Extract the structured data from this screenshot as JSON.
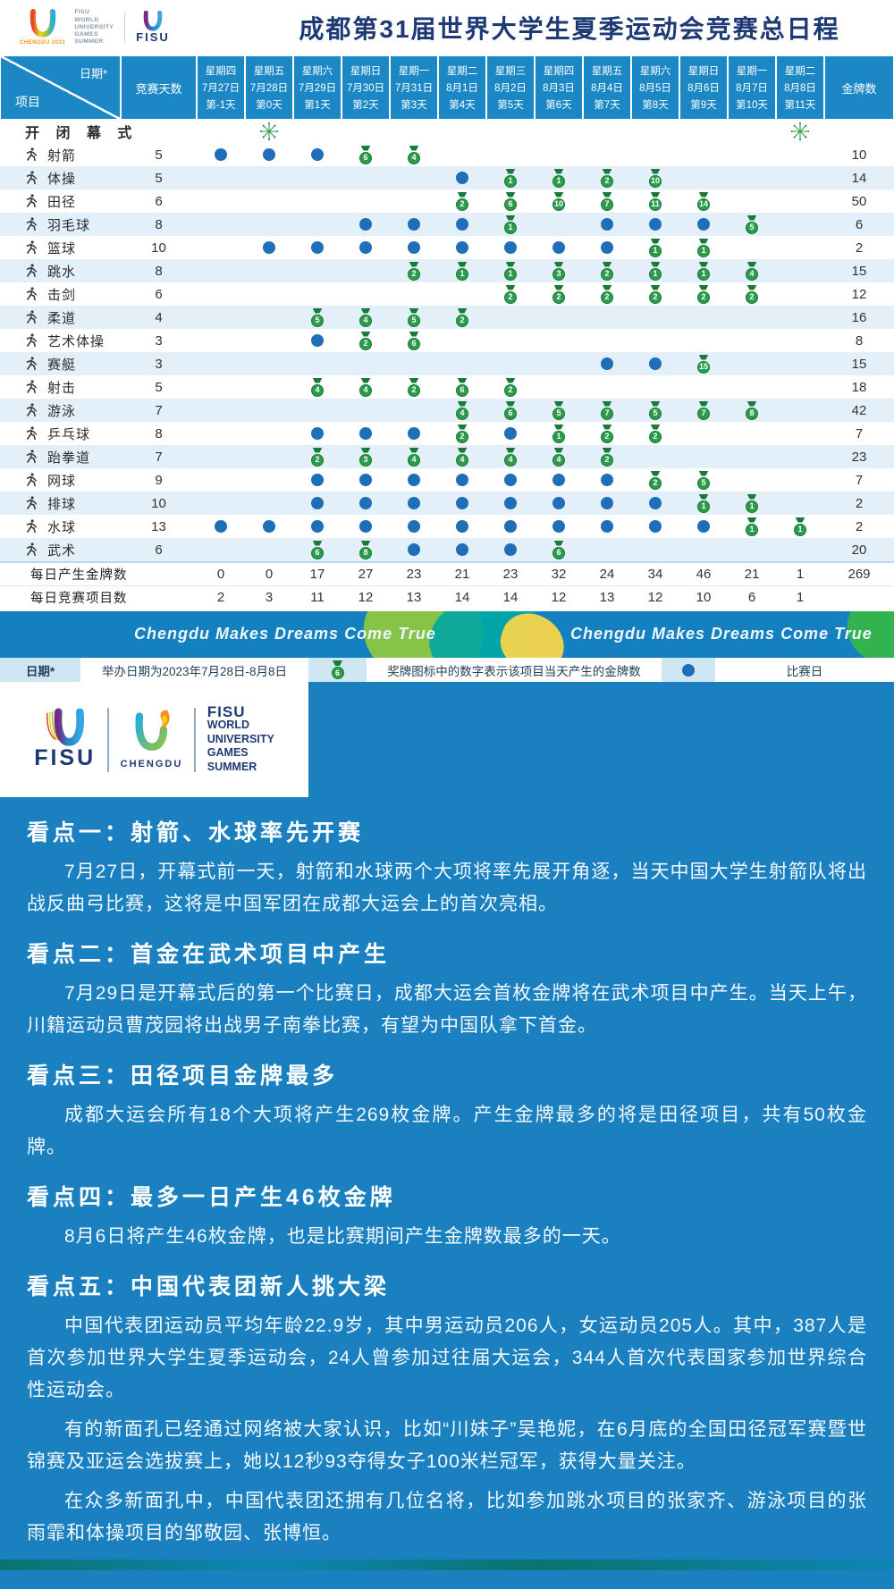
{
  "header": {
    "title": "成都第31届世界大学生夏季运动会竞赛总日程"
  },
  "logos": {
    "chengdu2021": "CHENGDU 2021",
    "fisu": "FISU",
    "chengdu": "CHENGDU",
    "block": [
      "FISU",
      "WORLD",
      "UNIVERSITY",
      "GAMES",
      "SUMMER"
    ]
  },
  "table": {
    "corner": {
      "top": "日期*",
      "bottom": "项目"
    },
    "col_days_label": "竞赛天数",
    "col_gold_label": "金牌数",
    "columns": [
      {
        "weekday": "星期四",
        "date": "7月27日",
        "daynum": "第-1天"
      },
      {
        "weekday": "星期五",
        "date": "7月28日",
        "daynum": "第0天"
      },
      {
        "weekday": "星期六",
        "date": "7月29日",
        "daynum": "第1天"
      },
      {
        "weekday": "星期日",
        "date": "7月30日",
        "daynum": "第2天"
      },
      {
        "weekday": "星期一",
        "date": "7月31日",
        "daynum": "第3天"
      },
      {
        "weekday": "星期二",
        "date": "8月1日",
        "daynum": "第4天"
      },
      {
        "weekday": "星期三",
        "date": "8月2日",
        "daynum": "第5天"
      },
      {
        "weekday": "星期四",
        "date": "8月3日",
        "daynum": "第6天"
      },
      {
        "weekday": "星期五",
        "date": "8月4日",
        "daynum": "第7天"
      },
      {
        "weekday": "星期六",
        "date": "8月5日",
        "daynum": "第8天"
      },
      {
        "weekday": "星期日",
        "date": "8月6日",
        "daynum": "第9天"
      },
      {
        "weekday": "星期一",
        "date": "8月7日",
        "daynum": "第10天"
      },
      {
        "weekday": "星期二",
        "date": "8月8日",
        "daynum": "第11天"
      }
    ],
    "ceremony": {
      "label": "开 闭 幕 式",
      "fireworks_cols": [
        1,
        12
      ]
    },
    "sports": [
      {
        "name": "射箭",
        "icon": "archery",
        "days": 5,
        "gold": 10,
        "cells": [
          "d",
          "d",
          "d",
          "m6",
          "m4",
          "",
          "",
          "",
          "",
          "",
          "",
          "",
          ""
        ]
      },
      {
        "name": "体操",
        "icon": "gymnastics",
        "days": 5,
        "gold": 14,
        "cells": [
          "",
          "",
          "",
          "",
          "",
          "d",
          "m1",
          "m1",
          "m2",
          "m10",
          "",
          "",
          ""
        ]
      },
      {
        "name": "田径",
        "icon": "athletics",
        "days": 6,
        "gold": 50,
        "cells": [
          "",
          "",
          "",
          "",
          "",
          "m2",
          "m6",
          "m10",
          "m7",
          "m11",
          "m14",
          "",
          ""
        ]
      },
      {
        "name": "羽毛球",
        "icon": "badminton",
        "days": 8,
        "gold": 6,
        "cells": [
          "",
          "",
          "",
          "d",
          "d",
          "d",
          "m1",
          "",
          "d",
          "d",
          "d",
          "m5",
          ""
        ]
      },
      {
        "name": "篮球",
        "icon": "basketball",
        "days": 10,
        "gold": 2,
        "cells": [
          "",
          "d",
          "d",
          "d",
          "d",
          "d",
          "d",
          "d",
          "d",
          "m1",
          "m1",
          "",
          ""
        ]
      },
      {
        "name": "跳水",
        "icon": "diving",
        "days": 8,
        "gold": 15,
        "cells": [
          "",
          "",
          "",
          "",
          "m2",
          "m1",
          "m1",
          "m3",
          "m2",
          "m1",
          "m1",
          "m4",
          ""
        ]
      },
      {
        "name": "击剑",
        "icon": "fencing",
        "days": 6,
        "gold": 12,
        "cells": [
          "",
          "",
          "",
          "",
          "",
          "",
          "m2",
          "m2",
          "m2",
          "m2",
          "m2",
          "m2",
          ""
        ]
      },
      {
        "name": "柔道",
        "icon": "judo",
        "days": 4,
        "gold": 16,
        "cells": [
          "",
          "",
          "m5",
          "m4",
          "m5",
          "m2",
          "",
          "",
          "",
          "",
          "",
          "",
          ""
        ]
      },
      {
        "name": "艺术体操",
        "icon": "rhythmic-gymnastics",
        "days": 3,
        "gold": 8,
        "cells": [
          "",
          "",
          "d",
          "m2",
          "m6",
          "",
          "",
          "",
          "",
          "",
          "",
          "",
          ""
        ]
      },
      {
        "name": "赛艇",
        "icon": "rowing",
        "days": 3,
        "gold": 15,
        "cells": [
          "",
          "",
          "",
          "",
          "",
          "",
          "",
          "",
          "d",
          "d",
          "m15",
          "",
          ""
        ]
      },
      {
        "name": "射击",
        "icon": "shooting",
        "days": 5,
        "gold": 18,
        "cells": [
          "",
          "",
          "m4",
          "m4",
          "m2",
          "m6",
          "m2",
          "",
          "",
          "",
          "",
          "",
          ""
        ]
      },
      {
        "name": "游泳",
        "icon": "swimming",
        "days": 7,
        "gold": 42,
        "cells": [
          "",
          "",
          "",
          "",
          "",
          "m4",
          "m6",
          "m5",
          "m7",
          "m5",
          "m7",
          "m8",
          ""
        ]
      },
      {
        "name": "乒乓球",
        "icon": "table-tennis",
        "days": 8,
        "gold": 7,
        "cells": [
          "",
          "",
          "d",
          "d",
          "d",
          "m2",
          "d",
          "m1",
          "m2",
          "m2",
          "",
          "",
          ""
        ]
      },
      {
        "name": "跆拳道",
        "icon": "taekwondo",
        "days": 7,
        "gold": 23,
        "cells": [
          "",
          "",
          "m2",
          "m3",
          "m4",
          "m4",
          "m4",
          "m4",
          "m2",
          "",
          "",
          "",
          ""
        ]
      },
      {
        "name": "网球",
        "icon": "tennis",
        "days": 9,
        "gold": 7,
        "cells": [
          "",
          "",
          "d",
          "d",
          "d",
          "d",
          "d",
          "d",
          "d",
          "m2",
          "m5",
          "",
          ""
        ]
      },
      {
        "name": "排球",
        "icon": "volleyball",
        "days": 10,
        "gold": 2,
        "cells": [
          "",
          "",
          "d",
          "d",
          "d",
          "d",
          "d",
          "d",
          "d",
          "d",
          "m1",
          "m1",
          ""
        ]
      },
      {
        "name": "水球",
        "icon": "water-polo",
        "days": 13,
        "gold": 2,
        "cells": [
          "d",
          "d",
          "d",
          "d",
          "d",
          "d",
          "d",
          "d",
          "d",
          "d",
          "d",
          "m1",
          "m1"
        ]
      },
      {
        "name": "武术",
        "icon": "wushu",
        "days": 6,
        "gold": 20,
        "cells": [
          "",
          "",
          "m6",
          "m8",
          "d",
          "d",
          "d",
          "m6",
          "",
          "",
          "",
          "",
          ""
        ]
      }
    ],
    "summary": [
      {
        "label": "每日产生金牌数",
        "values": [
          "0",
          "0",
          "17",
          "27",
          "23",
          "21",
          "23",
          "32",
          "24",
          "34",
          "46",
          "21",
          "1"
        ],
        "total": "269"
      },
      {
        "label": "每日竞赛项目数",
        "values": [
          "2",
          "3",
          "11",
          "12",
          "13",
          "14",
          "14",
          "12",
          "13",
          "12",
          "10",
          "6",
          "1"
        ],
        "total": ""
      }
    ]
  },
  "banner": {
    "slogan": "Chengdu Makes Dreams Come True"
  },
  "legend": {
    "date_label": "日期*",
    "date_note": "举办日期为2023年7月28日-8月8日",
    "medal_example": "6",
    "medal_note": "奖牌图标中的数字表示该项目当天产生的金牌数",
    "dot_note": "比赛日"
  },
  "article": {
    "sections": [
      {
        "heading": "看点一：射箭、水球率先开赛",
        "p1": "7月27日，开幕式前一天，射箭和水球两个大项将率先展开角逐，当天中国大学生射箭队将出战反曲弓比赛，这将是中国军团在成都大运会上的首次亮相。"
      },
      {
        "heading": "看点二：首金在武术项目中产生",
        "p1": "7月29日是开幕式后的第一个比赛日，成都大运会首枚金牌将在武术项目中产生。当天上午，川籍运动员曹茂园将出战男子南拳比赛，有望为中国队拿下首金。"
      },
      {
        "heading": "看点三：田径项目金牌最多",
        "p1": "成都大运会所有18个大项将产生269枚金牌。产生金牌最多的将是田径项目，共有50枚金牌。"
      },
      {
        "heading": "看点四：最多一日产生46枚金牌",
        "p1": "8月6日将产生46枚金牌，也是比赛期间产生金牌数最多的一天。"
      },
      {
        "heading": "看点五：中国代表团新人挑大梁",
        "p1": "中国代表团运动员平均年龄22.9岁，其中男运动员206人，女运动员205人。其中，387人是首次参加世界大学生夏季运动会，24人曾参加过往届大运会，344人首次代表国家参加世界综合性运动会。",
        "p2": "有的新面孔已经通过网络被大家认识，比如“川妹子”吴艳妮，在6月底的全国田径冠军赛暨世锦赛及亚运会选拔赛上，她以12秒93夺得女子100米栏冠军，获得大量关注。",
        "p3": "在众多新面孔中，中国代表团还拥有几位名将，比如参加跳水项目的张家齐、游泳项目的张雨霏和体操项目的邹敬园、张博恒。"
      }
    ]
  },
  "colors": {
    "header_blue": "#1b87c5",
    "body_blue": "#1a80c0",
    "dot_blue": "#1e6fb8",
    "medal_green": "#2c9b4b",
    "medal_ribbon_green": "#177a38",
    "navy": "#1d3a75",
    "row_stripe": "#e3f0f9"
  }
}
